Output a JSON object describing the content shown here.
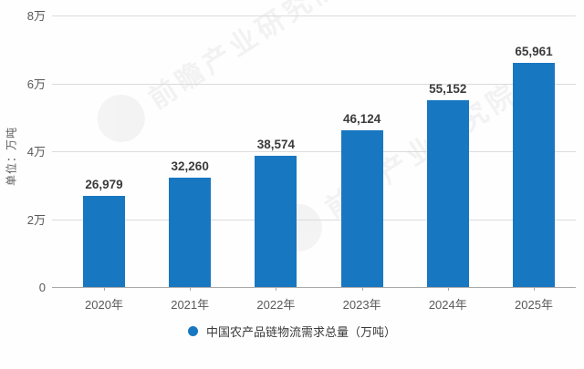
{
  "chart_data": {
    "type": "bar",
    "categories": [
      "2020年",
      "2021年",
      "2022年",
      "2023年",
      "2024年",
      "2025年"
    ],
    "values": [
      26979,
      32260,
      38574,
      46124,
      55152,
      65961
    ],
    "value_labels": [
      "26,979",
      "32,260",
      "38,574",
      "46,124",
      "55,152",
      "65,961"
    ],
    "title": "",
    "xlabel": "",
    "ylabel": "单位：万吨",
    "ylim": [
      0,
      80000
    ],
    "y_ticks": [
      {
        "value": 0,
        "label": "0"
      },
      {
        "value": 20000,
        "label": "2万"
      },
      {
        "value": 40000,
        "label": "4万"
      },
      {
        "value": 60000,
        "label": "6万"
      },
      {
        "value": 80000,
        "label": "8万"
      }
    ],
    "grid": true,
    "bar_color": "#1877c1",
    "legend": {
      "position": "bottom",
      "entries": [
        {
          "label": "中国农产品链物流需求总量（万吨）",
          "color": "#1877c1",
          "marker": "circle"
        }
      ]
    }
  },
  "watermark": {
    "text": "前瞻产业研究院"
  },
  "colors": {
    "bar": "#1877c1",
    "value_label": "#3b3b3b",
    "tick_label": "#595959",
    "gridline": "#dbdbdb",
    "baseline": "#a9a9a9",
    "background": "#fefefe"
  }
}
